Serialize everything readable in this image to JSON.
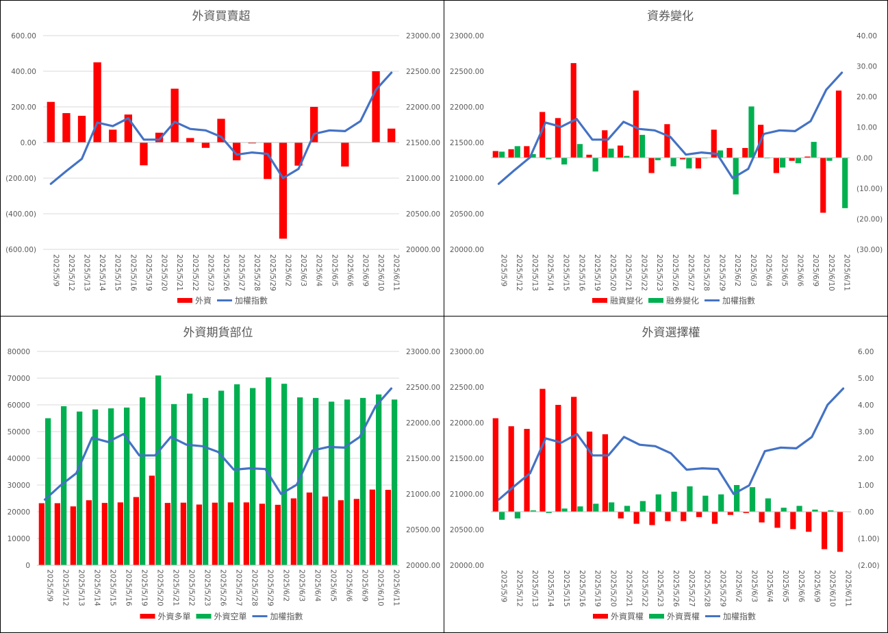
{
  "colors": {
    "red": "#ff0000",
    "green": "#00b050",
    "line": "#4472c4",
    "grid": "#d9d9d9",
    "text": "#595959",
    "negative": "#ff0000"
  },
  "chart_data": [
    {
      "type": "bar",
      "title": "外資買賣超",
      "categories": [
        "2025/5/9",
        "2025/5/12",
        "2025/5/13",
        "2025/5/14",
        "2025/5/15",
        "2025/5/16",
        "2025/5/19",
        "2025/5/20",
        "2025/5/21",
        "2025/5/22",
        "2025/5/23",
        "2025/5/26",
        "2025/5/27",
        "2025/5/28",
        "2025/5/29",
        "2025/6/2",
        "2025/6/3",
        "2025/6/4",
        "2025/6/5",
        "2025/6/6",
        "2025/6/9",
        "2025/6/10",
        "2025/6/11"
      ],
      "series": [
        {
          "name": "外資",
          "kind": "bar",
          "axis": "left",
          "color": "#ff0000",
          "values": [
            228,
            165,
            150,
            450,
            72,
            157,
            -128,
            55,
            302,
            25,
            -30,
            133,
            -100,
            -5,
            -205,
            -540,
            -130,
            200,
            0,
            -135,
            0,
            400,
            78
          ]
        },
        {
          "name": "加權指數",
          "kind": "line",
          "axis": "right",
          "color": "#4472c4",
          "values": [
            20920,
            21100,
            21270,
            21780,
            21730,
            21840,
            21540,
            21540,
            21790,
            21690,
            21670,
            21580,
            21330,
            21360,
            21340,
            21000,
            21130,
            21620,
            21670,
            21660,
            21800,
            22240,
            22480
          ]
        }
      ],
      "left_axis": {
        "min": -600,
        "max": 600,
        "step": 200,
        "labels": [
          "(600.00)",
          "(400.00)",
          "(200.00)",
          "0.00",
          "200.00",
          "400.00",
          "600.00"
        ],
        "negative_color": "#ff0000"
      },
      "right_axis": {
        "min": 20000,
        "max": 23000,
        "step": 500,
        "labels": [
          "20000.00",
          "20500.00",
          "21000.00",
          "21500.00",
          "22000.00",
          "22500.00",
          "23000.00"
        ]
      },
      "legend_position": "bottom",
      "grid": true
    },
    {
      "type": "bar",
      "title": "資券變化",
      "categories": [
        "2025/5/9",
        "2025/5/12",
        "2025/5/13",
        "2025/5/14",
        "2025/5/15",
        "2025/5/16",
        "2025/5/19",
        "2025/5/20",
        "2025/5/21",
        "2025/5/22",
        "2025/5/23",
        "2025/5/26",
        "2025/5/27",
        "2025/5/28",
        "2025/5/29",
        "2025/6/2",
        "2025/6/3",
        "2025/6/4",
        "2025/6/5",
        "2025/6/6",
        "2025/6/9",
        "2025/6/10",
        "2025/6/11"
      ],
      "series": [
        {
          "name": "融資變化",
          "kind": "bar",
          "axis": "right",
          "color": "#ff0000",
          "values": [
            2.2,
            2.8,
            3.8,
            15,
            13,
            31,
            1,
            9,
            4,
            22,
            -5,
            11,
            -0.5,
            -3.5,
            9.2,
            3.2,
            3.2,
            10.8,
            -5,
            -1,
            0.4,
            -18,
            22
          ]
        },
        {
          "name": "融券變化",
          "kind": "bar",
          "axis": "right",
          "color": "#00b050",
          "values": [
            2,
            3.8,
            1.2,
            -0.5,
            -2.2,
            4.5,
            -4.5,
            3,
            0.6,
            7.5,
            -0.8,
            -2.8,
            -3.5,
            -0.2,
            2.4,
            -12,
            16.8,
            -0.2,
            -3.2,
            -1.8,
            5.2,
            -1,
            -16.5
          ]
        },
        {
          "name": "加權指數",
          "kind": "line",
          "axis": "left",
          "color": "#4472c4",
          "values": [
            20920,
            21110,
            21290,
            21780,
            21720,
            21830,
            21540,
            21540,
            21790,
            21690,
            21670,
            21580,
            21330,
            21360,
            21340,
            21000,
            21130,
            21620,
            21670,
            21660,
            21800,
            22240,
            22480
          ]
        }
      ],
      "left_axis": {
        "min": 20000,
        "max": 23000,
        "step": 500,
        "labels": [
          "20000.00",
          "20500.00",
          "21000.00",
          "21500.00",
          "22000.00",
          "22500.00",
          "23000.00"
        ]
      },
      "right_axis": {
        "min": -30,
        "max": 40,
        "step": 10,
        "labels": [
          "(30.00)",
          "(20.00)",
          "(10.00)",
          "0.00",
          "10.00",
          "20.00",
          "30.00",
          "40.00"
        ],
        "negative_color": "#ff0000"
      },
      "legend_position": "bottom",
      "grid": false
    },
    {
      "type": "bar",
      "title": "外資期貨部位",
      "categories": [
        "2025/5/9",
        "2025/5/12",
        "2025/5/13",
        "2025/5/14",
        "2025/5/15",
        "2025/5/16",
        "2025/5/19",
        "2025/5/20",
        "2025/5/21",
        "2025/5/22",
        "2025/5/23",
        "2025/5/26",
        "2025/5/27",
        "2025/5/28",
        "2025/5/29",
        "2025/6/2",
        "2025/6/3",
        "2025/6/4",
        "2025/6/5",
        "2025/6/6",
        "2025/6/9",
        "2025/6/10",
        "2025/6/11"
      ],
      "series": [
        {
          "name": "外資多單",
          "kind": "bar",
          "axis": "left",
          "color": "#ff0000",
          "values": [
            23200,
            23200,
            22000,
            24300,
            23300,
            23500,
            25500,
            33500,
            23300,
            23400,
            22700,
            23400,
            23500,
            23500,
            23000,
            22600,
            25000,
            27200,
            25700,
            24300,
            24800,
            28300,
            28200
          ]
        },
        {
          "name": "外資空單",
          "kind": "bar",
          "axis": "left",
          "color": "#00b050",
          "values": [
            55000,
            59500,
            57500,
            58300,
            58700,
            59000,
            62800,
            71000,
            60300,
            64200,
            62600,
            65300,
            67700,
            66300,
            70300,
            67900,
            62800,
            62600,
            61200,
            62000,
            62600,
            63900,
            62000
          ]
        },
        {
          "name": "加權指數",
          "kind": "line",
          "axis": "right",
          "color": "#4472c4",
          "values": [
            20920,
            21120,
            21290,
            21790,
            21730,
            21840,
            21540,
            21540,
            21800,
            21690,
            21670,
            21590,
            21340,
            21360,
            21350,
            21000,
            21130,
            21610,
            21660,
            21650,
            21800,
            22230,
            22480
          ]
        }
      ],
      "left_axis": {
        "min": 0,
        "max": 80000,
        "step": 10000,
        "labels": [
          "0",
          "10000",
          "20000",
          "30000",
          "40000",
          "50000",
          "60000",
          "70000",
          "80000"
        ]
      },
      "right_axis": {
        "min": 20000,
        "max": 23000,
        "step": 500,
        "labels": [
          "20000.00",
          "20500.00",
          "21000.00",
          "21500.00",
          "22000.00",
          "22500.00",
          "23000.00"
        ]
      },
      "legend_position": "bottom",
      "grid": true
    },
    {
      "type": "bar",
      "title": "外資選擇權",
      "categories": [
        "2025/5/9",
        "2025/5/12",
        "2025/5/13",
        "2025/5/14",
        "2025/5/15",
        "2025/5/16",
        "2025/5/19",
        "2025/5/20",
        "2025/5/21",
        "2025/5/22",
        "2025/5/23",
        "2025/5/26",
        "2025/5/27",
        "2025/5/28",
        "2025/5/29",
        "2025/6/2",
        "2025/6/3",
        "2025/6/4",
        "2025/6/5",
        "2025/6/6",
        "2025/6/9",
        "2025/6/10",
        "2025/6/11"
      ],
      "series": [
        {
          "name": "外資買權",
          "kind": "bar",
          "axis": "right",
          "color": "#ff0000",
          "values": [
            3.5,
            3.2,
            3.1,
            4.6,
            4.0,
            4.3,
            3.0,
            2.9,
            -0.25,
            -0.45,
            -0.5,
            -0.35,
            -0.35,
            -0.2,
            -0.45,
            -0.12,
            -0.05,
            -0.4,
            -0.6,
            -0.65,
            -0.75,
            -1.4,
            -1.5
          ]
        },
        {
          "name": "外資賣權",
          "kind": "bar",
          "axis": "right",
          "color": "#00b050",
          "values": [
            -0.3,
            -0.25,
            0.05,
            -0.05,
            0.12,
            0.2,
            0.3,
            0.35,
            0.22,
            0.4,
            0.65,
            0.75,
            0.95,
            0.6,
            0.65,
            1.0,
            0.92,
            0.5,
            0.15,
            0.22,
            0.08,
            0.05,
            0.0
          ]
        },
        {
          "name": "加權指數",
          "kind": "line",
          "axis": "left",
          "color": "#4472c4",
          "values": [
            20920,
            21110,
            21290,
            21780,
            21720,
            21840,
            21540,
            21540,
            21800,
            21690,
            21670,
            21570,
            21340,
            21360,
            21350,
            21000,
            21120,
            21600,
            21650,
            21640,
            21800,
            22250,
            22480
          ]
        }
      ],
      "left_axis": {
        "min": 20000,
        "max": 23000,
        "step": 500,
        "labels": [
          "20000.00",
          "20500.00",
          "21000.00",
          "21500.00",
          "22000.00",
          "22500.00",
          "23000.00"
        ]
      },
      "right_axis": {
        "min": -2,
        "max": 6,
        "step": 1,
        "labels": [
          "(2.00)",
          "(1.00)",
          "0.00",
          "1.00",
          "2.00",
          "3.00",
          "4.00",
          "5.00",
          "6.00"
        ],
        "negative_color": "#ff0000"
      },
      "legend_position": "bottom",
      "grid": false
    }
  ]
}
